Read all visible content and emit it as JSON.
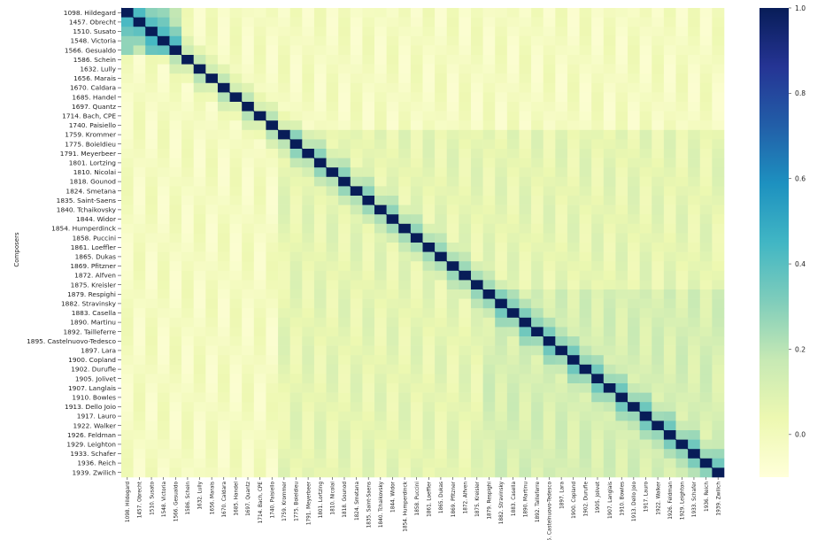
{
  "chart_data": {
    "type": "heatmap",
    "title": "",
    "ylabel": "Composers",
    "xlabel": "",
    "rows": [
      "1098. Hildegard",
      "1457. Obrecht",
      "1510. Susato",
      "1548. Victoria",
      "1566. Gesualdo",
      "1586. Schein",
      "1632. Lully",
      "1656. Marais",
      "1670. Caldara",
      "1685. Handel",
      "1697. Quantz",
      "1714. Bach, CPE",
      "1740. Paisiello",
      "1759. Krommer",
      "1775. Boieldieu",
      "1791. Meyerbeer",
      "1801. Lortzing",
      "1810. Nicolai",
      "1818. Gounod",
      "1824. Smetana",
      "1835. Saint-Saens",
      "1840. Tchaikovsky",
      "1844. Widor",
      "1854. Humperdinck",
      "1858. Puccini",
      "1861. Loeffler",
      "1865. Dukas",
      "1869. Pfitzner",
      "1872. Alfven",
      "1875. Kreisler",
      "1879. Respighi",
      "1882. Stravinsky",
      "1883. Casella",
      "1890. Martinu",
      "1892. Tailleferre",
      "1895. Castelnuovo-Tedesco",
      "1897. Lara",
      "1900. Copland",
      "1902. Durufle",
      "1905. Jolivet",
      "1907. Langlais",
      "1910. Bowles",
      "1913. Dello Joio",
      "1917. Lauro",
      "1922. Walker",
      "1926. Feldman",
      "1929. Leighton",
      "1933. Schafer",
      "1936. Reich",
      "1939. Zwilich"
    ],
    "columns": [
      "1098. Hildegard",
      "1457. Obrecht",
      "1510. Susato",
      "1548. Victoria",
      "1566. Gesualdo",
      "1586. Schein",
      "1632. Lully",
      "1656. Marais",
      "1670. Caldara",
      "1685. Handel",
      "1697. Quantz",
      "1714. Bach, CPE",
      "1740. Paisiello",
      "1759. Krommer",
      "1775. Boieldieu",
      "1791. Meyerbeer",
      "1801. Lortzing",
      "1810. Nicolai",
      "1818. Gounod",
      "1824. Smetana",
      "1835. Saint-Saens",
      "1840. Tchaikovsky",
      "1844. Widor",
      "1854. Humperdinck",
      "1858. Puccini",
      "1861. Loeffler",
      "1865. Dukas",
      "1869. Pfitzner",
      "1872. Alfven",
      "1875. Kreisler",
      "1879. Respighi",
      "1882. Stravinsky",
      "1883. Casella",
      "1890. Martinu",
      "1892. Tailleferre",
      "1895. Castelnuovo-Tedesco",
      "1897. Lara",
      "1900. Copland",
      "1902. Durufle",
      "1905. Jolivet",
      "1907. Langlais",
      "1910. Bowles",
      "1913. Dello Joio",
      "1917. Lauro",
      "1922. Walker",
      "1926. Feldman",
      "1929. Leighton",
      "1933. Schafer",
      "1936. Reich",
      "1939. Zwilich"
    ],
    "diagonal_value": 1.0,
    "colorbar": {
      "min": -0.1,
      "max": 1.0,
      "ticks": [
        0.0,
        0.2,
        0.4,
        0.6,
        0.8,
        1.0
      ],
      "tick_labels": [
        "0.0",
        "0.2",
        "0.4",
        "0.6",
        "0.8",
        "1.0"
      ],
      "colormap": "YlGnBu",
      "colors": [
        "#ffffd9",
        "#edf8b1",
        "#c7e9b4",
        "#7fcdbb",
        "#41b6c4",
        "#1d91c0",
        "#225ea8",
        "#253494",
        "#081d58"
      ]
    },
    "grid": false
  }
}
